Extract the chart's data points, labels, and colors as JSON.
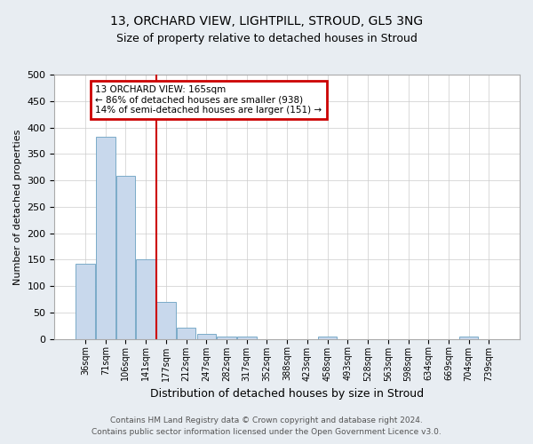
{
  "title1": "13, ORCHARD VIEW, LIGHTPILL, STROUD, GL5 3NG",
  "title2": "Size of property relative to detached houses in Stroud",
  "xlabel": "Distribution of detached houses by size in Stroud",
  "ylabel": "Number of detached properties",
  "footnote1": "Contains HM Land Registry data © Crown copyright and database right 2024.",
  "footnote2": "Contains public sector information licensed under the Open Government Licence v3.0.",
  "bin_labels": [
    "36sqm",
    "71sqm",
    "106sqm",
    "141sqm",
    "177sqm",
    "212sqm",
    "247sqm",
    "282sqm",
    "317sqm",
    "352sqm",
    "388sqm",
    "423sqm",
    "458sqm",
    "493sqm",
    "528sqm",
    "563sqm",
    "598sqm",
    "634sqm",
    "669sqm",
    "704sqm",
    "739sqm"
  ],
  "bar_values": [
    143,
    383,
    308,
    150,
    70,
    22,
    10,
    5,
    4,
    0,
    0,
    0,
    4,
    0,
    0,
    0,
    0,
    0,
    0,
    4,
    0
  ],
  "bar_color": "#c8d8ec",
  "bar_edge_color": "#7aaac8",
  "red_line_color": "#cc0000",
  "red_line_bin_index": 3.5,
  "annotation_text": "13 ORCHARD VIEW: 165sqm\n← 86% of detached houses are smaller (938)\n14% of semi-detached houses are larger (151) →",
  "annotation_box_color": "#cc0000",
  "ylim": [
    0,
    500
  ],
  "yticks": [
    0,
    50,
    100,
    150,
    200,
    250,
    300,
    350,
    400,
    450,
    500
  ],
  "background_color": "#e8edf2",
  "plot_background": "#ffffff",
  "grid_color": "#cccccc"
}
